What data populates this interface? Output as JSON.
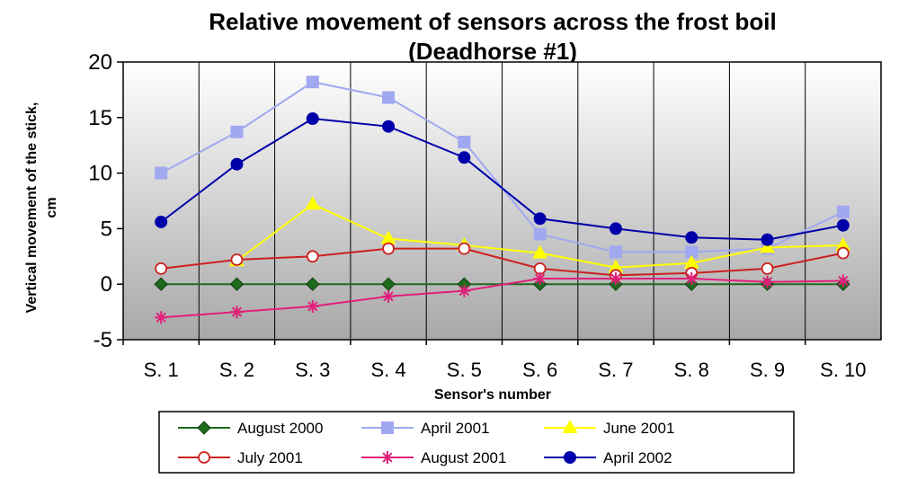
{
  "chart_data": {
    "type": "line",
    "title_line1": "Relative movement of sensors across the frost boil",
    "title_line2": "(Deadhorse #1)",
    "xlabel": "Sensor's number",
    "ylabel_line1": "Vertical movement of the stick,",
    "ylabel_line2": "cm",
    "categories": [
      "S. 1",
      "S. 2",
      "S. 3",
      "S. 4",
      "S. 5",
      "S. 6",
      "S. 7",
      "S. 8",
      "S. 9",
      "S. 10"
    ],
    "ylim": [
      -5,
      20
    ],
    "yticks": [
      -5,
      0,
      5,
      10,
      15,
      20
    ],
    "grid": "vertical",
    "legend_position": "bottom",
    "series": [
      {
        "name": "August 2000",
        "color": "#1e6b1e",
        "marker": "diamond",
        "values": [
          0,
          0,
          0,
          0,
          0,
          0,
          0,
          0,
          0,
          0
        ]
      },
      {
        "name": "April 2001",
        "color": "#a0a8f0",
        "marker": "square",
        "values": [
          10.0,
          13.7,
          18.2,
          16.8,
          12.8,
          4.5,
          2.9,
          2.9,
          3.2,
          6.5
        ]
      },
      {
        "name": "June 2001",
        "color": "#ffff00",
        "marker": "triangle",
        "values": [
          null,
          2.1,
          7.2,
          4.1,
          3.5,
          2.8,
          1.5,
          1.9,
          3.3,
          3.5
        ]
      },
      {
        "name": "July 2001",
        "color": "#cc2020",
        "marker": "open-circle",
        "values": [
          1.4,
          2.2,
          2.5,
          3.2,
          3.2,
          1.4,
          0.8,
          1.0,
          1.4,
          2.8
        ]
      },
      {
        "name": "August 2001",
        "color": "#e0207a",
        "marker": "star",
        "values": [
          -3.0,
          -2.5,
          -2.0,
          -1.1,
          -0.6,
          0.5,
          0.5,
          0.5,
          0.2,
          0.3
        ]
      },
      {
        "name": "April 2002",
        "color": "#0000aa",
        "marker": "circle",
        "values": [
          5.6,
          10.8,
          14.9,
          14.2,
          11.4,
          5.9,
          5.0,
          4.2,
          4.0,
          5.3
        ]
      }
    ]
  }
}
